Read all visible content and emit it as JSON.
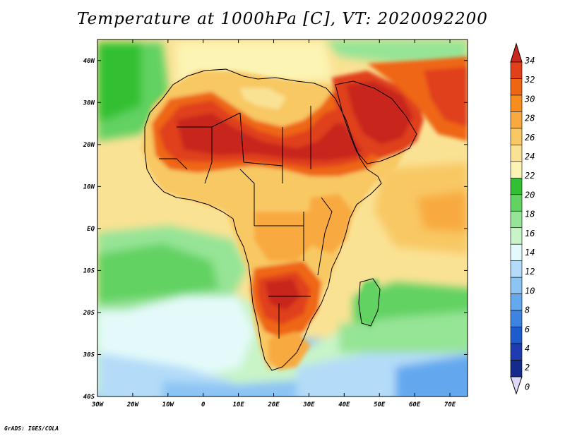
{
  "title": "Temperature at 1000hPa [C], VT: 2020092200",
  "credit": "GrADS: IGES/COLA",
  "map": {
    "lon_ticks": [
      "30W",
      "20W",
      "10W",
      "0",
      "10E",
      "20E",
      "30E",
      "40E",
      "50E",
      "60E",
      "70E"
    ],
    "lat_ticks": [
      "40N",
      "30N",
      "20N",
      "10N",
      "EQ",
      "10S",
      "20S",
      "30S",
      "40S"
    ],
    "lon_range": [
      -30,
      75
    ],
    "lat_range": [
      -40,
      45
    ]
  },
  "colorbar": {
    "labels": [
      "34",
      "32",
      "30",
      "28",
      "26",
      "24",
      "22",
      "20",
      "18",
      "16",
      "14",
      "12",
      "10",
      "8",
      "6",
      "4",
      "2",
      "0"
    ],
    "colors": [
      "#c8281e",
      "#e0401a",
      "#ee6614",
      "#f88c1c",
      "#f8aa40",
      "#f8c864",
      "#fae294",
      "#fcf4b4",
      "#32c032",
      "#62d262",
      "#96e496",
      "#c8f4c8",
      "#e4fafa",
      "#b4dcf8",
      "#8cc4f4",
      "#64a8ee",
      "#3c84e0",
      "#1c5ccc",
      "#1e3cb0",
      "#142a8c",
      "#dcdcfa"
    ],
    "top_arrow_color": "#c8281e",
    "bottom_arrow_color": "#dcdcfa"
  }
}
